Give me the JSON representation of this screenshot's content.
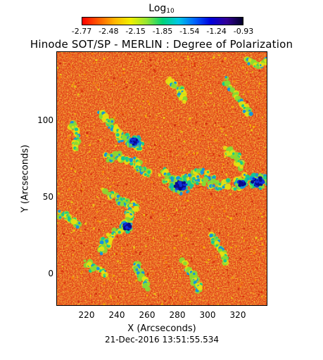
{
  "colorbar": {
    "label": "Log",
    "label_sub": "10",
    "ticks": [
      "-2.77",
      "-2.48",
      "-2.15",
      "-1.85",
      "-1.54",
      "-1.24",
      "-0.93"
    ],
    "stops": [
      "#ff0000",
      "#ff5a00",
      "#ffb400",
      "#f0f000",
      "#96e632",
      "#00d278",
      "#00c8e6",
      "#0064ff",
      "#0000dc",
      "#320096",
      "#000028"
    ]
  },
  "title": "Hinode SOT/SP - MERLIN : Degree of Polarization",
  "image": {
    "background_color": "#e23a10",
    "speckle_colors": [
      "#f06a10",
      "#ff8a00",
      "#d82808",
      "#c81a08",
      "#f5b800",
      "#e8dc10"
    ],
    "network_colors": [
      "#e8e010",
      "#86dc32",
      "#10c896",
      "#1090e6",
      "#1030d8",
      "#0a0a8c"
    ]
  },
  "axes": {
    "xlabel": "X (Arcseconds)",
    "ylabel": "Y (Arcseconds)",
    "xticks": [
      "220",
      "240",
      "260",
      "280",
      "300",
      "320"
    ],
    "yticks": [
      "0",
      "50",
      "100"
    ]
  },
  "timestamp": "21-Dec-2016 13:51:55.534"
}
